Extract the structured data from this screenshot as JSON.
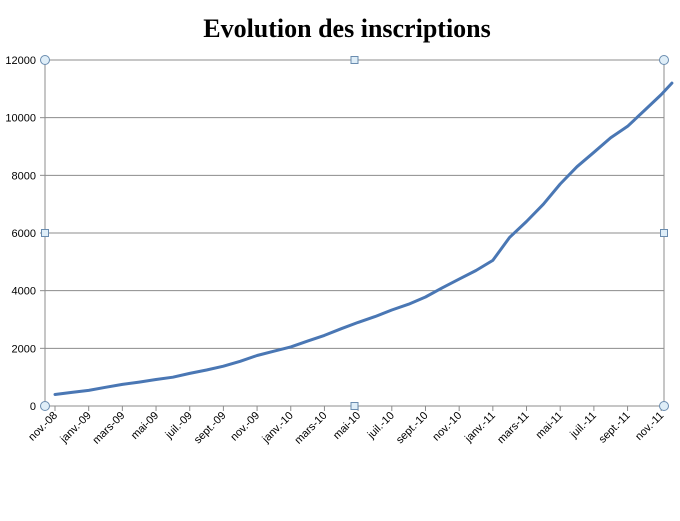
{
  "chart_data": {
    "type": "line",
    "title": "Evolution des inscriptions",
    "xlabel": "",
    "ylabel": "",
    "ylim": [
      0,
      12000
    ],
    "yticks": [
      0,
      2000,
      4000,
      6000,
      8000,
      10000,
      12000
    ],
    "ytick_labels": [
      "0",
      "2000",
      "4000",
      "6000",
      "8000",
      "10000",
      "12000"
    ],
    "xtick_labels": [
      "nov.-08",
      "janv.-09",
      "mars-09",
      "mai-09",
      "juil.-09",
      "sept.-09",
      "nov.-09",
      "janv.-10",
      "mars-10",
      "mai-10",
      "juil.-10",
      "sept.-10",
      "nov.-10",
      "janv.-11",
      "mars-11",
      "mai-11",
      "juil.-11",
      "sept.-11",
      "nov.-11"
    ],
    "grid": true,
    "legend": "none",
    "line_color": "#4a77b4",
    "series": [
      {
        "x": [
          "2008-11",
          "2008-12",
          "2009-01",
          "2009-02",
          "2009-03",
          "2009-04",
          "2009-05",
          "2009-06",
          "2009-07",
          "2009-08",
          "2009-09",
          "2009-10",
          "2009-11",
          "2009-12",
          "2010-01",
          "2010-02",
          "2010-03",
          "2010-04",
          "2010-05",
          "2010-06",
          "2010-07",
          "2010-08",
          "2010-09",
          "2010-10",
          "2010-11",
          "2010-12",
          "2011-01",
          "2011-02",
          "2011-03",
          "2011-04",
          "2011-05",
          "2011-06",
          "2011-07",
          "2011-08",
          "2011-09",
          "2011-10",
          "2011-11"
        ],
        "values": [
          400,
          470,
          540,
          650,
          750,
          830,
          920,
          1000,
          1130,
          1250,
          1380,
          1550,
          1750,
          1900,
          2050,
          2250,
          2450,
          2680,
          2900,
          3100,
          3330,
          3530,
          3780,
          4100,
          4400,
          4700,
          5050,
          5850,
          6400,
          7000,
          7700,
          8300,
          8800,
          9300,
          9700,
          10250,
          10800
        ]
      }
    ],
    "series_end": {
      "x": "2011-11-20",
      "value": 11200
    }
  }
}
